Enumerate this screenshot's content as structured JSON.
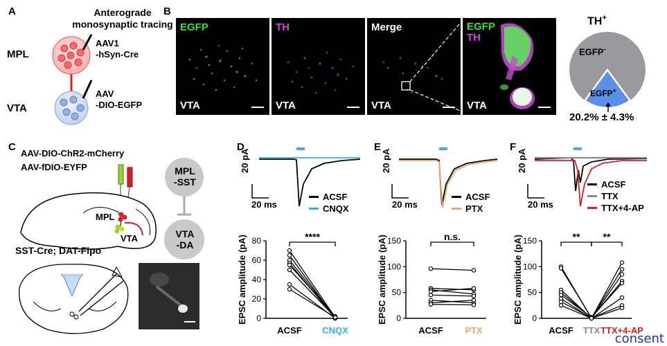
{
  "panel_a": {
    "letter": "A",
    "title_line1": "Anterograde",
    "title_line2": "monosynaptic tracing",
    "region_top": "MPL",
    "region_bottom": "VTA",
    "virus_top_line1": "AAV1",
    "virus_top_line2": "-hSyn-Cre",
    "virus_bottom_line1": "AAV",
    "virus_bottom_line2": "-DIO-EGFP"
  },
  "panel_b": {
    "letter": "B",
    "images": [
      {
        "channel": "EGFP",
        "region": "VTA"
      },
      {
        "channel": "TH",
        "region": "VTA"
      },
      {
        "channel": "Merge",
        "region": "VTA"
      },
      {
        "channel_line1": "EGFP",
        "channel_line2": "TH",
        "region": "VTA"
      }
    ],
    "pie": {
      "title": "TH",
      "title_sup": "+",
      "neg_label": "EGFP",
      "neg_sup": "-",
      "pos_label": "EGFP",
      "pos_sup": "+",
      "caption": "20.2% ± 4.3%",
      "pos_fraction": 0.202,
      "colors": {
        "negative": "#9a9a9c",
        "positive": "#5b8fe8"
      }
    }
  },
  "panel_c": {
    "letter": "C",
    "virus_line1": "AAV-DIO-ChR2-mCherry",
    "virus_line2": "AAV-fDIO-EYFP",
    "mpl_label": "MPL",
    "vta_label": "VTA",
    "mouse_line": "SST-Cre; DAT-Flpo",
    "circuit_top_line1": "MPL",
    "circuit_top_line2": "-SST",
    "circuit_bottom_line1": "VTA",
    "circuit_bottom_line2": "-DA"
  },
  "panel_d": {
    "letter": "D",
    "legend": [
      {
        "label": "ACSF",
        "color": "#000000"
      },
      {
        "label": "CNQX",
        "color": "#29b8e6"
      }
    ],
    "scale_y": "20 pA",
    "scale_x": "20 ms",
    "significance": "****",
    "chart_data": {
      "type": "line",
      "ylabel": "EPSC amplitude (pA)",
      "categories": [
        "ACSF",
        "CNQX"
      ],
      "ylim": [
        0,
        80
      ],
      "yticks": [
        0,
        20,
        40,
        60,
        80
      ],
      "pairs": [
        [
          70,
          1
        ],
        [
          65,
          0
        ],
        [
          60,
          1
        ],
        [
          57,
          0
        ],
        [
          55,
          2
        ],
        [
          50,
          1
        ],
        [
          35,
          0
        ],
        [
          30,
          1
        ]
      ]
    }
  },
  "panel_e": {
    "letter": "E",
    "legend": [
      {
        "label": "ACSF",
        "color": "#000000"
      },
      {
        "label": "PTX",
        "color": "#f2a86a"
      }
    ],
    "scale_y": "20 pA",
    "scale_x": "20 ms",
    "significance": "n.s.",
    "chart_data": {
      "type": "line",
      "ylabel": "EPSC amplitude (pA)",
      "categories": [
        "ACSF",
        "PTX"
      ],
      "ylim": [
        0,
        150
      ],
      "yticks": [
        0,
        50,
        100,
        150
      ],
      "pairs": [
        [
          96,
          93
        ],
        [
          58,
          55
        ],
        [
          55,
          47
        ],
        [
          52,
          58
        ],
        [
          45,
          43
        ],
        [
          35,
          30
        ],
        [
          30,
          35
        ],
        [
          27,
          26
        ]
      ]
    }
  },
  "panel_f": {
    "letter": "F",
    "legend": [
      {
        "label": "ACSF",
        "color": "#000000"
      },
      {
        "label": "TTX",
        "color": "#8a8a8a"
      },
      {
        "label": "TTX+4-AP",
        "color": "#e11b22"
      }
    ],
    "scale_y": "20 pA",
    "scale_x": "20 ms",
    "significance_1": "**",
    "significance_2": "**",
    "chart_data": {
      "type": "line",
      "ylabel": "EPSC amplitude (pA)",
      "categories": [
        "ACSF",
        "TTX",
        "TTX+4-AP"
      ],
      "ylim": [
        0,
        150
      ],
      "yticks": [
        0,
        50,
        100,
        150
      ],
      "triplets": [
        [
          100,
          0,
          108
        ],
        [
          97,
          1,
          95
        ],
        [
          55,
          0,
          85
        ],
        [
          50,
          1,
          72
        ],
        [
          45,
          2,
          68
        ],
        [
          38,
          0,
          40
        ],
        [
          32,
          1,
          25
        ],
        [
          25,
          0,
          20
        ]
      ]
    }
  },
  "consent": "consent"
}
